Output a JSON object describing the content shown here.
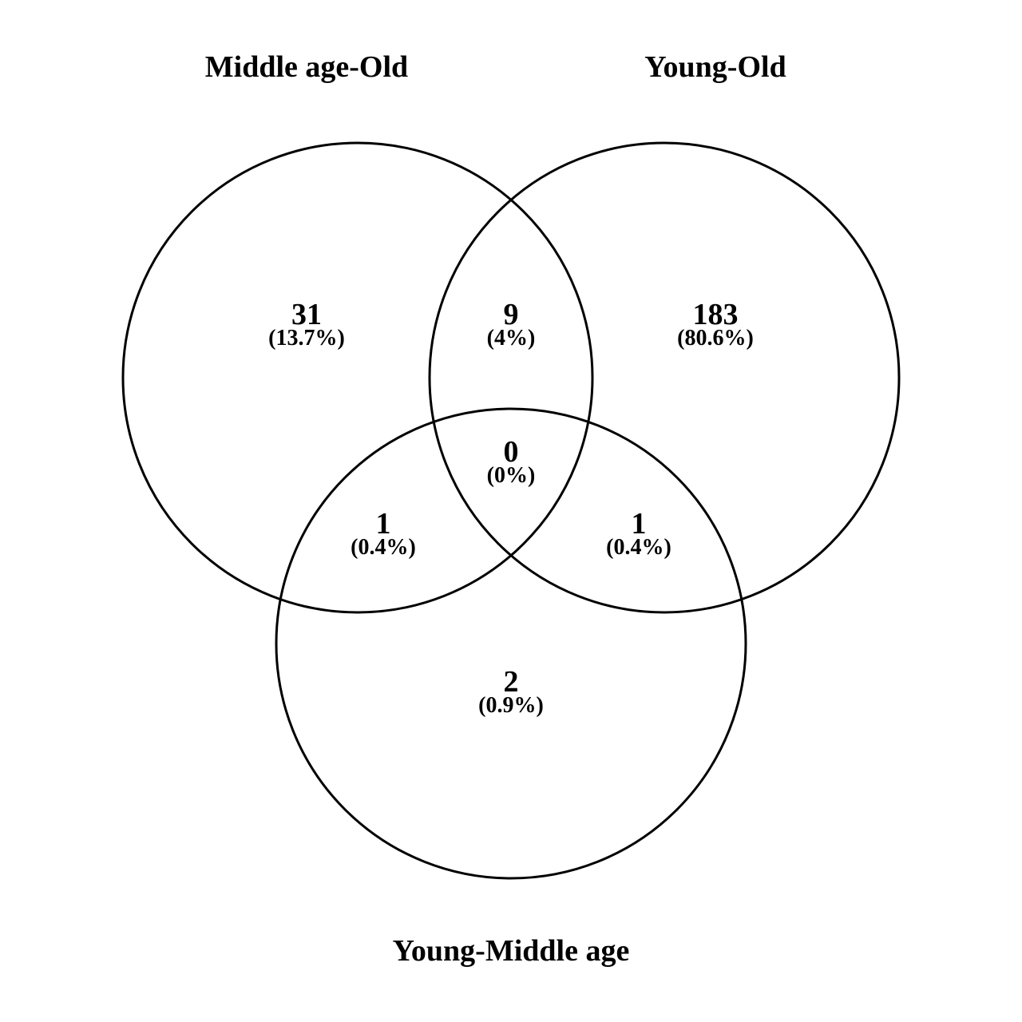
{
  "diagram": {
    "type": "venn3",
    "line_color": "#000000",
    "background": "#ffffff",
    "sets": [
      {
        "id": "A",
        "name": "Middle age-Old"
      },
      {
        "id": "B",
        "name": "Young-Old"
      },
      {
        "id": "C",
        "name": "Young-Middle age"
      }
    ],
    "regions": {
      "a_only": {
        "count": "31",
        "percent": "(13.7%)"
      },
      "ab": {
        "count": "9",
        "percent": "(4%)"
      },
      "b_only": {
        "count": "183",
        "percent": "(80.6%)"
      },
      "abc": {
        "count": "0",
        "percent": "(0%)"
      },
      "ac": {
        "count": "1",
        "percent": "(0.4%)"
      },
      "bc": {
        "count": "1",
        "percent": "(0.4%)"
      },
      "c_only": {
        "count": "2",
        "percent": "(0.9%)"
      }
    }
  }
}
